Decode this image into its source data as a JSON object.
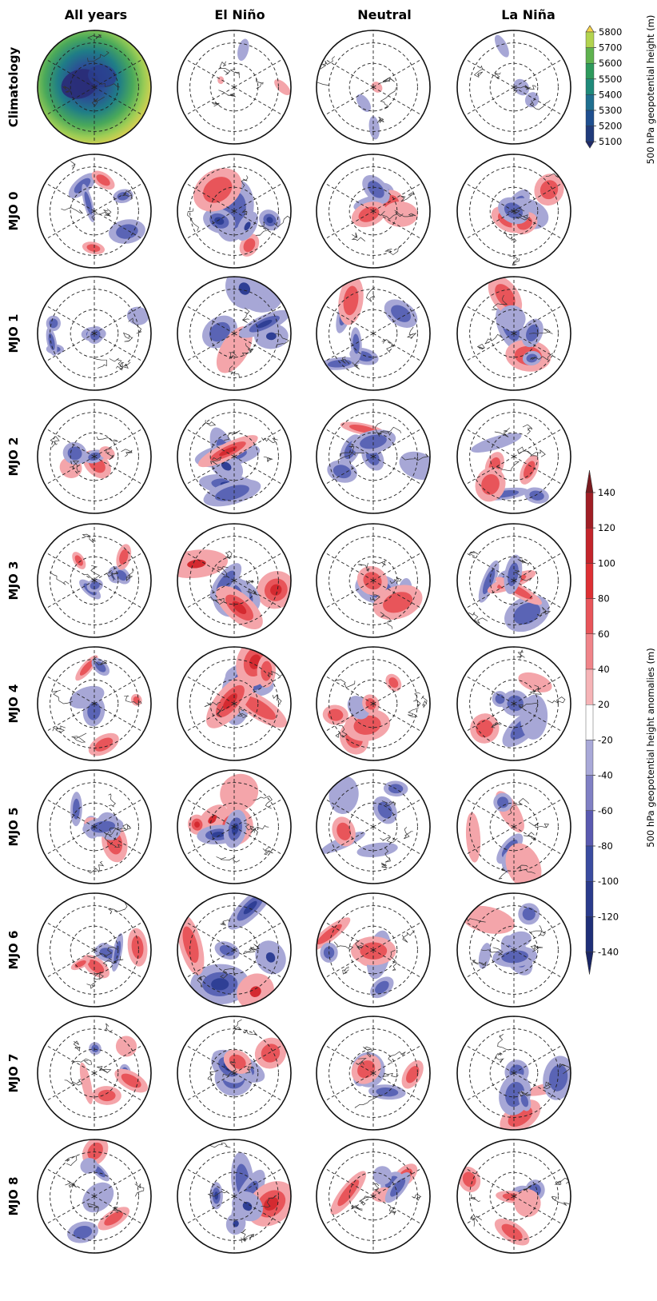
{
  "columns": [
    "All years",
    "El Niño",
    "Neutral",
    "La Niña"
  ],
  "rows": [
    "Climatology",
    "MJO 0",
    "MJO 1",
    "MJO 2",
    "MJO 3",
    "MJO 4",
    "MJO 5",
    "MJO 6",
    "MJO 7",
    "MJO 8"
  ],
  "colorbar_climatology": {
    "label": "500 hPa geopotential height (m)",
    "ticks": [
      "5800",
      "5700",
      "5600",
      "5500",
      "5400",
      "5300",
      "5200",
      "5100"
    ],
    "colors": [
      "#f6d34c",
      "#b2d34f",
      "#5fb24f",
      "#2e9a5c",
      "#1f8a7a",
      "#1f6f8f",
      "#1f4f8f",
      "#203b7b",
      "#1f2a6c"
    ]
  },
  "colorbar_anomaly": {
    "label": "500 hPa geopotential height anomalies (m)",
    "ticks": [
      "140",
      "120",
      "100",
      "80",
      "60",
      "40",
      "20",
      "-20",
      "-40",
      "-60",
      "-80",
      "-100",
      "-120",
      "-140"
    ],
    "colors": [
      "#7a1a1f",
      "#a01e25",
      "#c3242b",
      "#dd2f33",
      "#e8555a",
      "#f08489",
      "#f6b4b7",
      "#ffffff",
      "#a9a9d8",
      "#8080c4",
      "#5a5ab0",
      "#3a4ca0",
      "#2a3b8c",
      "#1f2f78",
      "#1a2666"
    ]
  },
  "anomaly_colors": {
    "pos_light": "#f4a5aa",
    "pos_mid": "#e8555a",
    "pos_dark": "#d42a30",
    "neg_light": "#a7a7d6",
    "neg_mid": "#5a64b5",
    "neg_dark": "#2f3f95"
  }
}
